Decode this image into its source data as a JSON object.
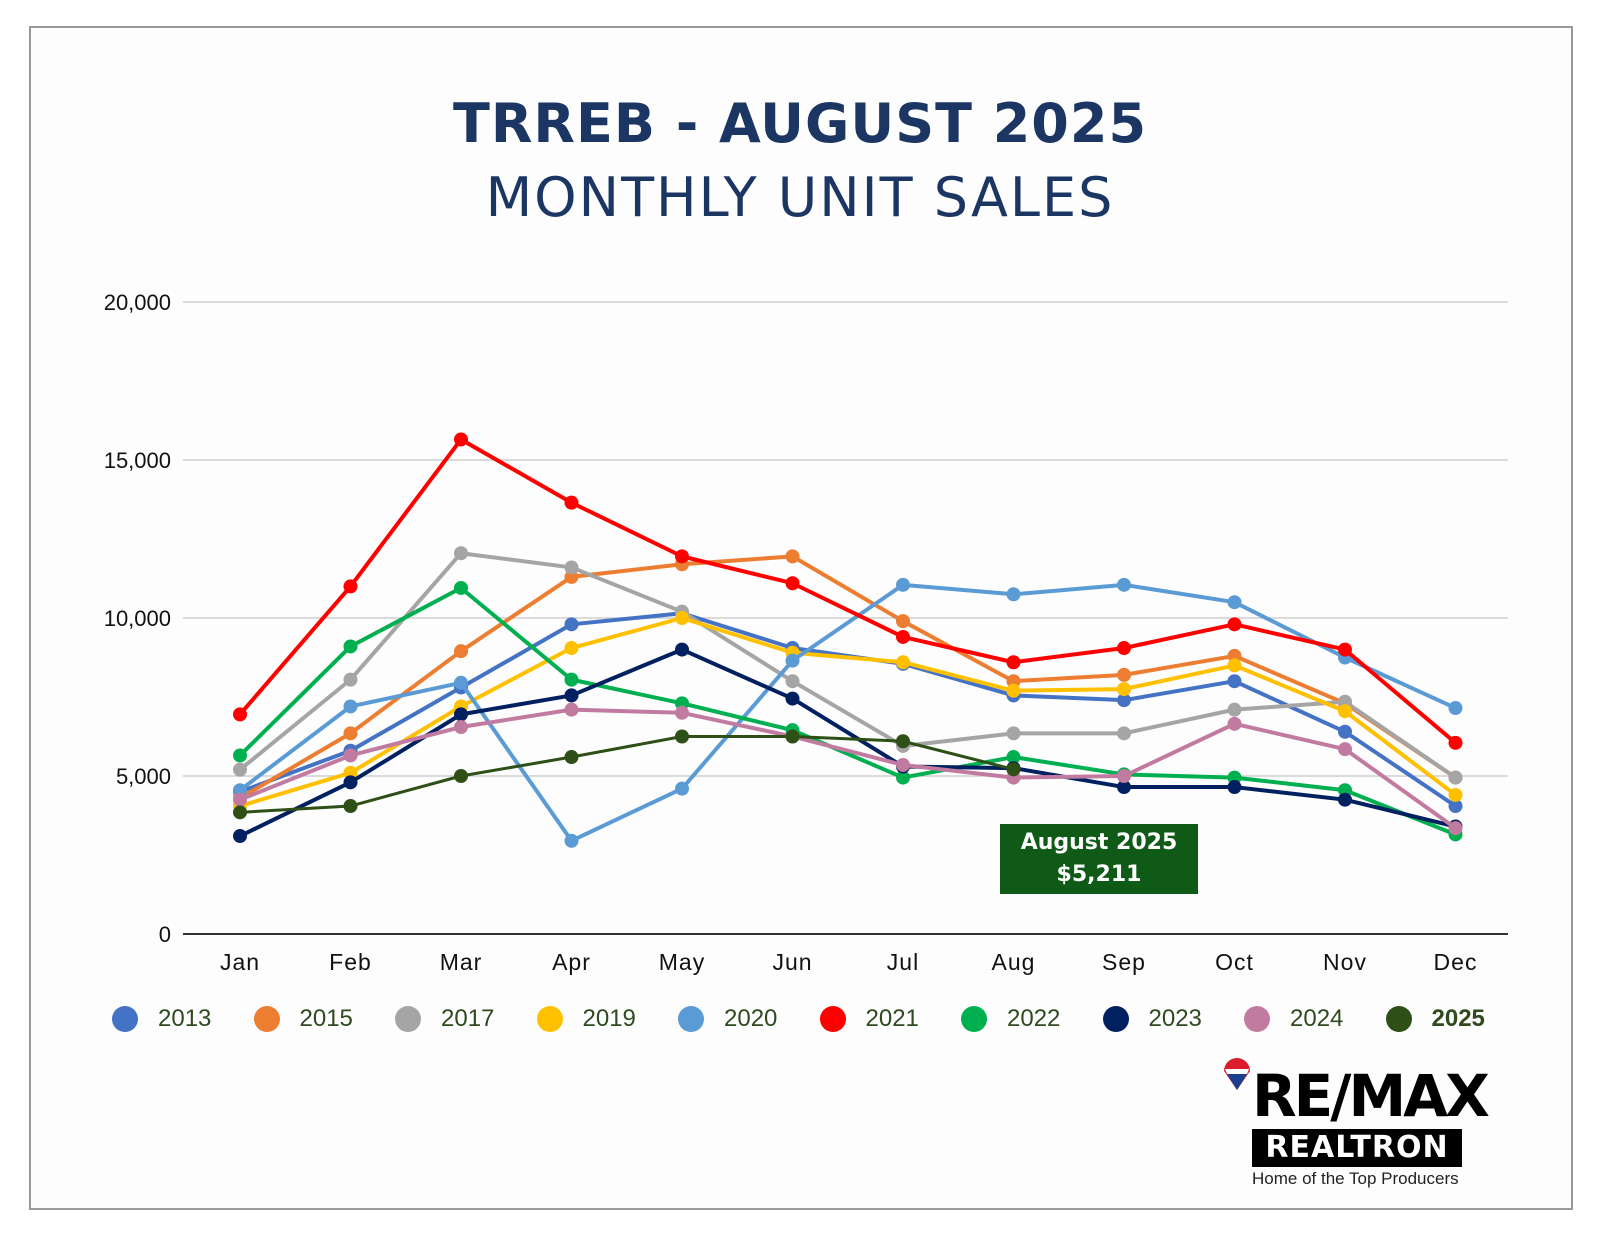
{
  "title": "TRREB - AUGUST 2025",
  "subtitle": "MONTHLY UNIT SALES",
  "callout": {
    "line1": "August 2025",
    "line2": "$5,211"
  },
  "logo": {
    "brand": "RE/MAX",
    "name": "REALTRON",
    "tagline": "Home of the Top Producers"
  },
  "chart_data": {
    "type": "line",
    "title": "TRREB - AUGUST 2025 MONTHLY UNIT SALES",
    "categories": [
      "Jan",
      "Feb",
      "Mar",
      "Apr",
      "May",
      "Jun",
      "Jul",
      "Aug",
      "Sep",
      "Oct",
      "Nov",
      "Dec"
    ],
    "ylim": [
      0,
      20000
    ],
    "yticks": [
      0,
      5000,
      10000,
      15000,
      20000
    ],
    "ytick_labels": [
      "0",
      "5,000",
      "10,000",
      "15,000",
      "20,000"
    ],
    "grid": true,
    "legend_position": "bottom",
    "series": [
      {
        "name": "2013",
        "color": "#4472c4",
        "bold": false,
        "values": [
          4500,
          5800,
          7800,
          9800,
          10150,
          9050,
          8550,
          7550,
          7400,
          8000,
          6400,
          4050
        ]
      },
      {
        "name": "2015",
        "color": "#ed7d31",
        "bold": false,
        "values": [
          4300,
          6350,
          8950,
          11300,
          11700,
          11950,
          9900,
          8000,
          8200,
          8800,
          7300,
          4950
        ]
      },
      {
        "name": "2017",
        "color": "#a5a5a5",
        "bold": false,
        "values": [
          5200,
          8050,
          12050,
          11600,
          10200,
          8000,
          5950,
          6350,
          6350,
          7100,
          7350,
          4950
        ]
      },
      {
        "name": "2019",
        "color": "#ffc000",
        "bold": false,
        "values": [
          4050,
          5100,
          7200,
          9050,
          10000,
          8900,
          8600,
          7700,
          7750,
          8500,
          7050,
          4400
        ]
      },
      {
        "name": "2020",
        "color": "#5b9bd5",
        "bold": false,
        "values": [
          4550,
          7200,
          7950,
          2950,
          4600,
          8650,
          11050,
          10750,
          11050,
          10500,
          8750,
          7150
        ]
      },
      {
        "name": "2021",
        "color": "#ff0000",
        "bold": false,
        "values": [
          6950,
          11000,
          15650,
          13650,
          11950,
          11100,
          9400,
          8600,
          9050,
          9800,
          9000,
          6050
        ]
      },
      {
        "name": "2022",
        "color": "#00b050",
        "bold": false,
        "values": [
          5650,
          9100,
          10950,
          8050,
          7300,
          6450,
          4950,
          5600,
          5050,
          4950,
          4550,
          3150
        ]
      },
      {
        "name": "2023",
        "color": "#002060",
        "bold": false,
        "values": [
          3100,
          4800,
          6950,
          7550,
          9000,
          7450,
          5300,
          5250,
          4650,
          4650,
          4250,
          3400
        ]
      },
      {
        "name": "2024",
        "color": "#c27ba0",
        "bold": false,
        "values": [
          4250,
          5650,
          6550,
          7100,
          7000,
          6250,
          5350,
          4950,
          5000,
          6650,
          5850,
          3350
        ]
      },
      {
        "name": "2025",
        "color": "#2e5016",
        "bold": true,
        "values": [
          3850,
          4050,
          5000,
          5600,
          6250,
          6250,
          6100,
          5211,
          null,
          null,
          null,
          null
        ]
      }
    ]
  }
}
